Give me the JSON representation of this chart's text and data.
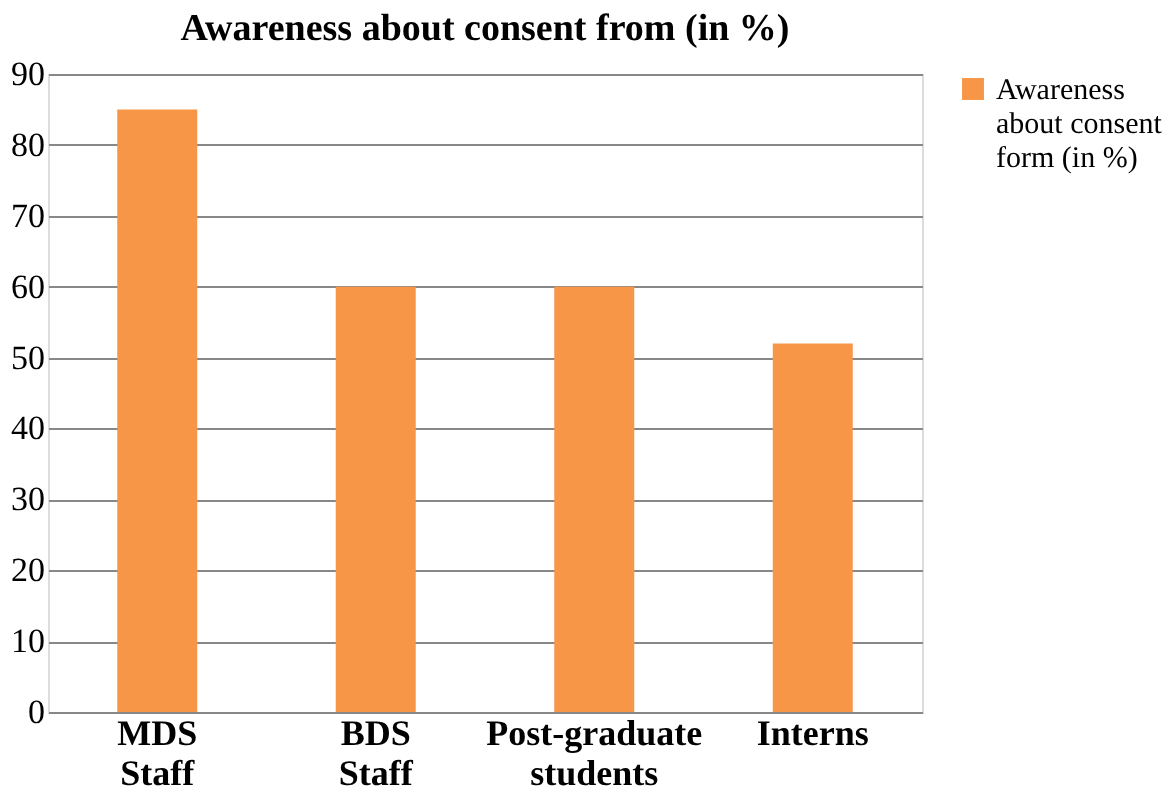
{
  "chart_data": {
    "type": "bar",
    "title": "Awareness about consent from (in %)",
    "categories": [
      "MDS Staff",
      "BDS Staff",
      "Post-graduate students",
      "Interns"
    ],
    "series": [
      {
        "name": "Awareness about consent form (in %)",
        "color": "#f79646",
        "values": [
          85,
          60,
          60,
          52
        ]
      }
    ],
    "ylim": [
      0,
      90
    ],
    "yticks": [
      0,
      10,
      20,
      30,
      40,
      50,
      60,
      70,
      80,
      90
    ],
    "grid": "y",
    "legend": "right"
  }
}
